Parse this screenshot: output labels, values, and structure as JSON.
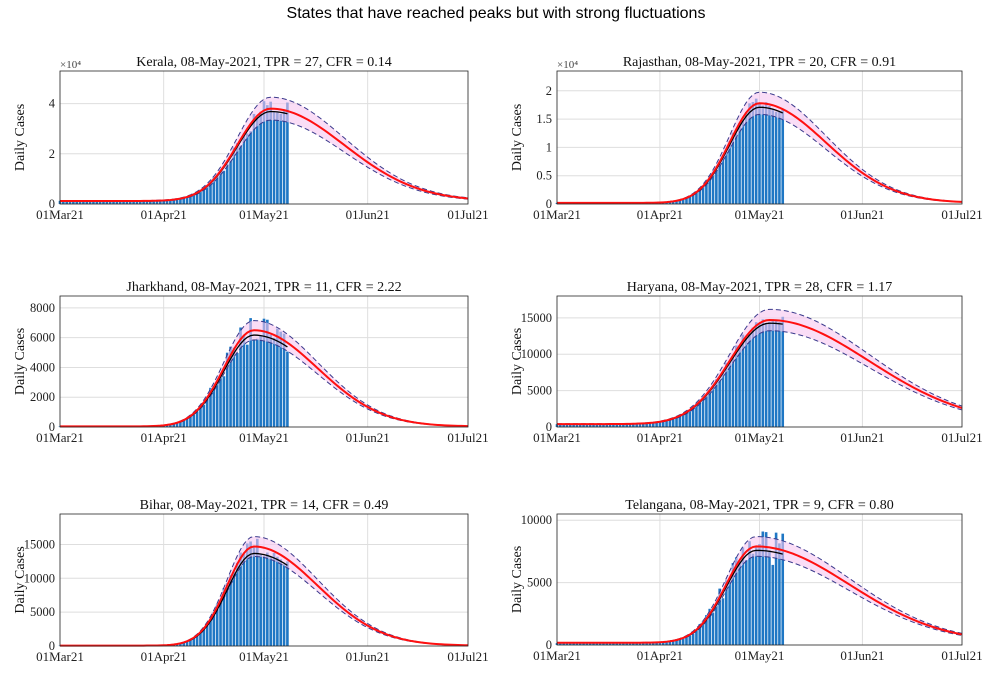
{
  "figure_title": "States that have reached peaks but with strong fluctuations",
  "colors": {
    "bars": "#1f77c4",
    "fit_line": "#ff1010",
    "data_line": "#000000",
    "band_fill": "#f6c6f0",
    "band_edge": "#3a3a8c",
    "axes": "#262626",
    "grid": "#dedede"
  },
  "chart_data": [
    {
      "type": "bar",
      "title": "Kerala, 08-May-2021, TPR = 27, CFR = 0.14",
      "ylabel": "Daily Cases",
      "y_multiplier_label": "×10⁴",
      "x_tick_labels": [
        "01Mar21",
        "01Apr21",
        "01May21",
        "01Jun21",
        "01Jul21"
      ],
      "x_ticks_day": [
        0,
        31,
        61,
        92,
        122
      ],
      "xlim": [
        0,
        122
      ],
      "ylim": [
        0,
        53000
      ],
      "y_ticks": [
        0,
        20000,
        40000
      ],
      "y_tick_labels": [
        "0",
        "2",
        "4"
      ],
      "grid": true,
      "last_data_day": 68,
      "curve": {
        "base": 1200,
        "peak": 38000,
        "peak_day": 63,
        "rise": 10,
        "fall": 22,
        "band": 0.12,
        "noise": 0.12,
        "smooth_offset": 0.97
      }
    },
    {
      "type": "bar",
      "title": "Rajasthan, 08-May-2021, TPR = 20, CFR = 0.91",
      "ylabel": "Daily Cases",
      "y_multiplier_label": "×10⁴",
      "x_tick_labels": [
        "01Mar21",
        "01Apr21",
        "01May21",
        "01Jun21",
        "01Jul21"
      ],
      "x_ticks_day": [
        0,
        31,
        61,
        92,
        122
      ],
      "xlim": [
        0,
        122
      ],
      "ylim": [
        0,
        23500
      ],
      "y_ticks": [
        0,
        5000,
        10000,
        15000,
        20000
      ],
      "y_tick_labels": [
        "0",
        "0.5",
        "1",
        "1.5",
        "2"
      ],
      "grid": true,
      "last_data_day": 68,
      "curve": {
        "base": 200,
        "peak": 17800,
        "peak_day": 61,
        "rise": 9,
        "fall": 20,
        "band": 0.11,
        "noise": 0.06,
        "smooth_offset": 0.96
      }
    },
    {
      "type": "bar",
      "title": "Jharkhand, 08-May-2021, TPR = 11, CFR = 2.22",
      "ylabel": "Daily Cases",
      "x_tick_labels": [
        "01Mar21",
        "01Apr21",
        "01May21",
        "01Jun21",
        "01Jul21"
      ],
      "x_ticks_day": [
        0,
        31,
        61,
        92,
        122
      ],
      "xlim": [
        0,
        122
      ],
      "ylim": [
        0,
        8800
      ],
      "y_ticks": [
        0,
        2000,
        4000,
        6000,
        8000
      ],
      "y_tick_labels": [
        "0",
        "2000",
        "4000",
        "6000",
        "8000"
      ],
      "grid": true,
      "last_data_day": 68,
      "curve": {
        "base": 40,
        "peak": 6500,
        "peak_day": 58,
        "rise": 9,
        "fall": 19,
        "band": 0.1,
        "noise": 0.14,
        "smooth_offset": 0.95
      }
    },
    {
      "type": "bar",
      "title": "Haryana, 08-May-2021, TPR = 28, CFR = 1.17",
      "ylabel": "Daily Cases",
      "x_tick_labels": [
        "01Mar21",
        "01Apr21",
        "01May21",
        "01Jun21",
        "01Jul21"
      ],
      "x_ticks_day": [
        0,
        31,
        61,
        92,
        122
      ],
      "xlim": [
        0,
        122
      ],
      "ylim": [
        0,
        18000
      ],
      "y_ticks": [
        0,
        5000,
        10000,
        15000
      ],
      "y_tick_labels": [
        "0",
        "5000",
        "10000",
        "15000"
      ],
      "grid": true,
      "last_data_day": 68,
      "curve": {
        "base": 400,
        "peak": 14700,
        "peak_day": 64,
        "rise": 12,
        "fall": 30,
        "band": 0.1,
        "noise": 0.08,
        "smooth_offset": 0.97
      }
    },
    {
      "type": "bar",
      "title": "Bihar, 08-May-2021, TPR = 14, CFR = 0.49",
      "ylabel": "Daily Cases",
      "x_tick_labels": [
        "01Mar21",
        "01Apr21",
        "01May21",
        "01Jun21",
        "01Jul21"
      ],
      "x_ticks_day": [
        0,
        31,
        61,
        92,
        122
      ],
      "xlim": [
        0,
        122
      ],
      "ylim": [
        0,
        19500
      ],
      "y_ticks": [
        0,
        5000,
        10000,
        15000
      ],
      "y_tick_labels": [
        "0",
        "5000",
        "10000",
        "15000"
      ],
      "grid": true,
      "last_data_day": 68,
      "curve": {
        "base": 60,
        "peak": 14700,
        "peak_day": 58,
        "rise": 8,
        "fall": 19,
        "band": 0.1,
        "noise": 0.09,
        "smooth_offset": 0.93
      }
    },
    {
      "type": "bar",
      "title": "Telangana, 08-May-2021, TPR = 9, CFR = 0.80",
      "ylabel": "Daily Cases",
      "x_tick_labels": [
        "01Mar21",
        "01Apr21",
        "01May21",
        "01Jun21",
        "01Jul21"
      ],
      "x_ticks_day": [
        0,
        31,
        61,
        92,
        122
      ],
      "xlim": [
        0,
        122
      ],
      "ylim": [
        0,
        10500
      ],
      "y_ticks": [
        0,
        5000,
        10000
      ],
      "y_tick_labels": [
        "0",
        "5000",
        "10000"
      ],
      "grid": true,
      "last_data_day": 68,
      "curve": {
        "base": 180,
        "peak": 7900,
        "peak_day": 60,
        "rise": 9,
        "fall": 28,
        "band": 0.1,
        "noise": 0.18,
        "smooth_offset": 0.96
      }
    }
  ]
}
